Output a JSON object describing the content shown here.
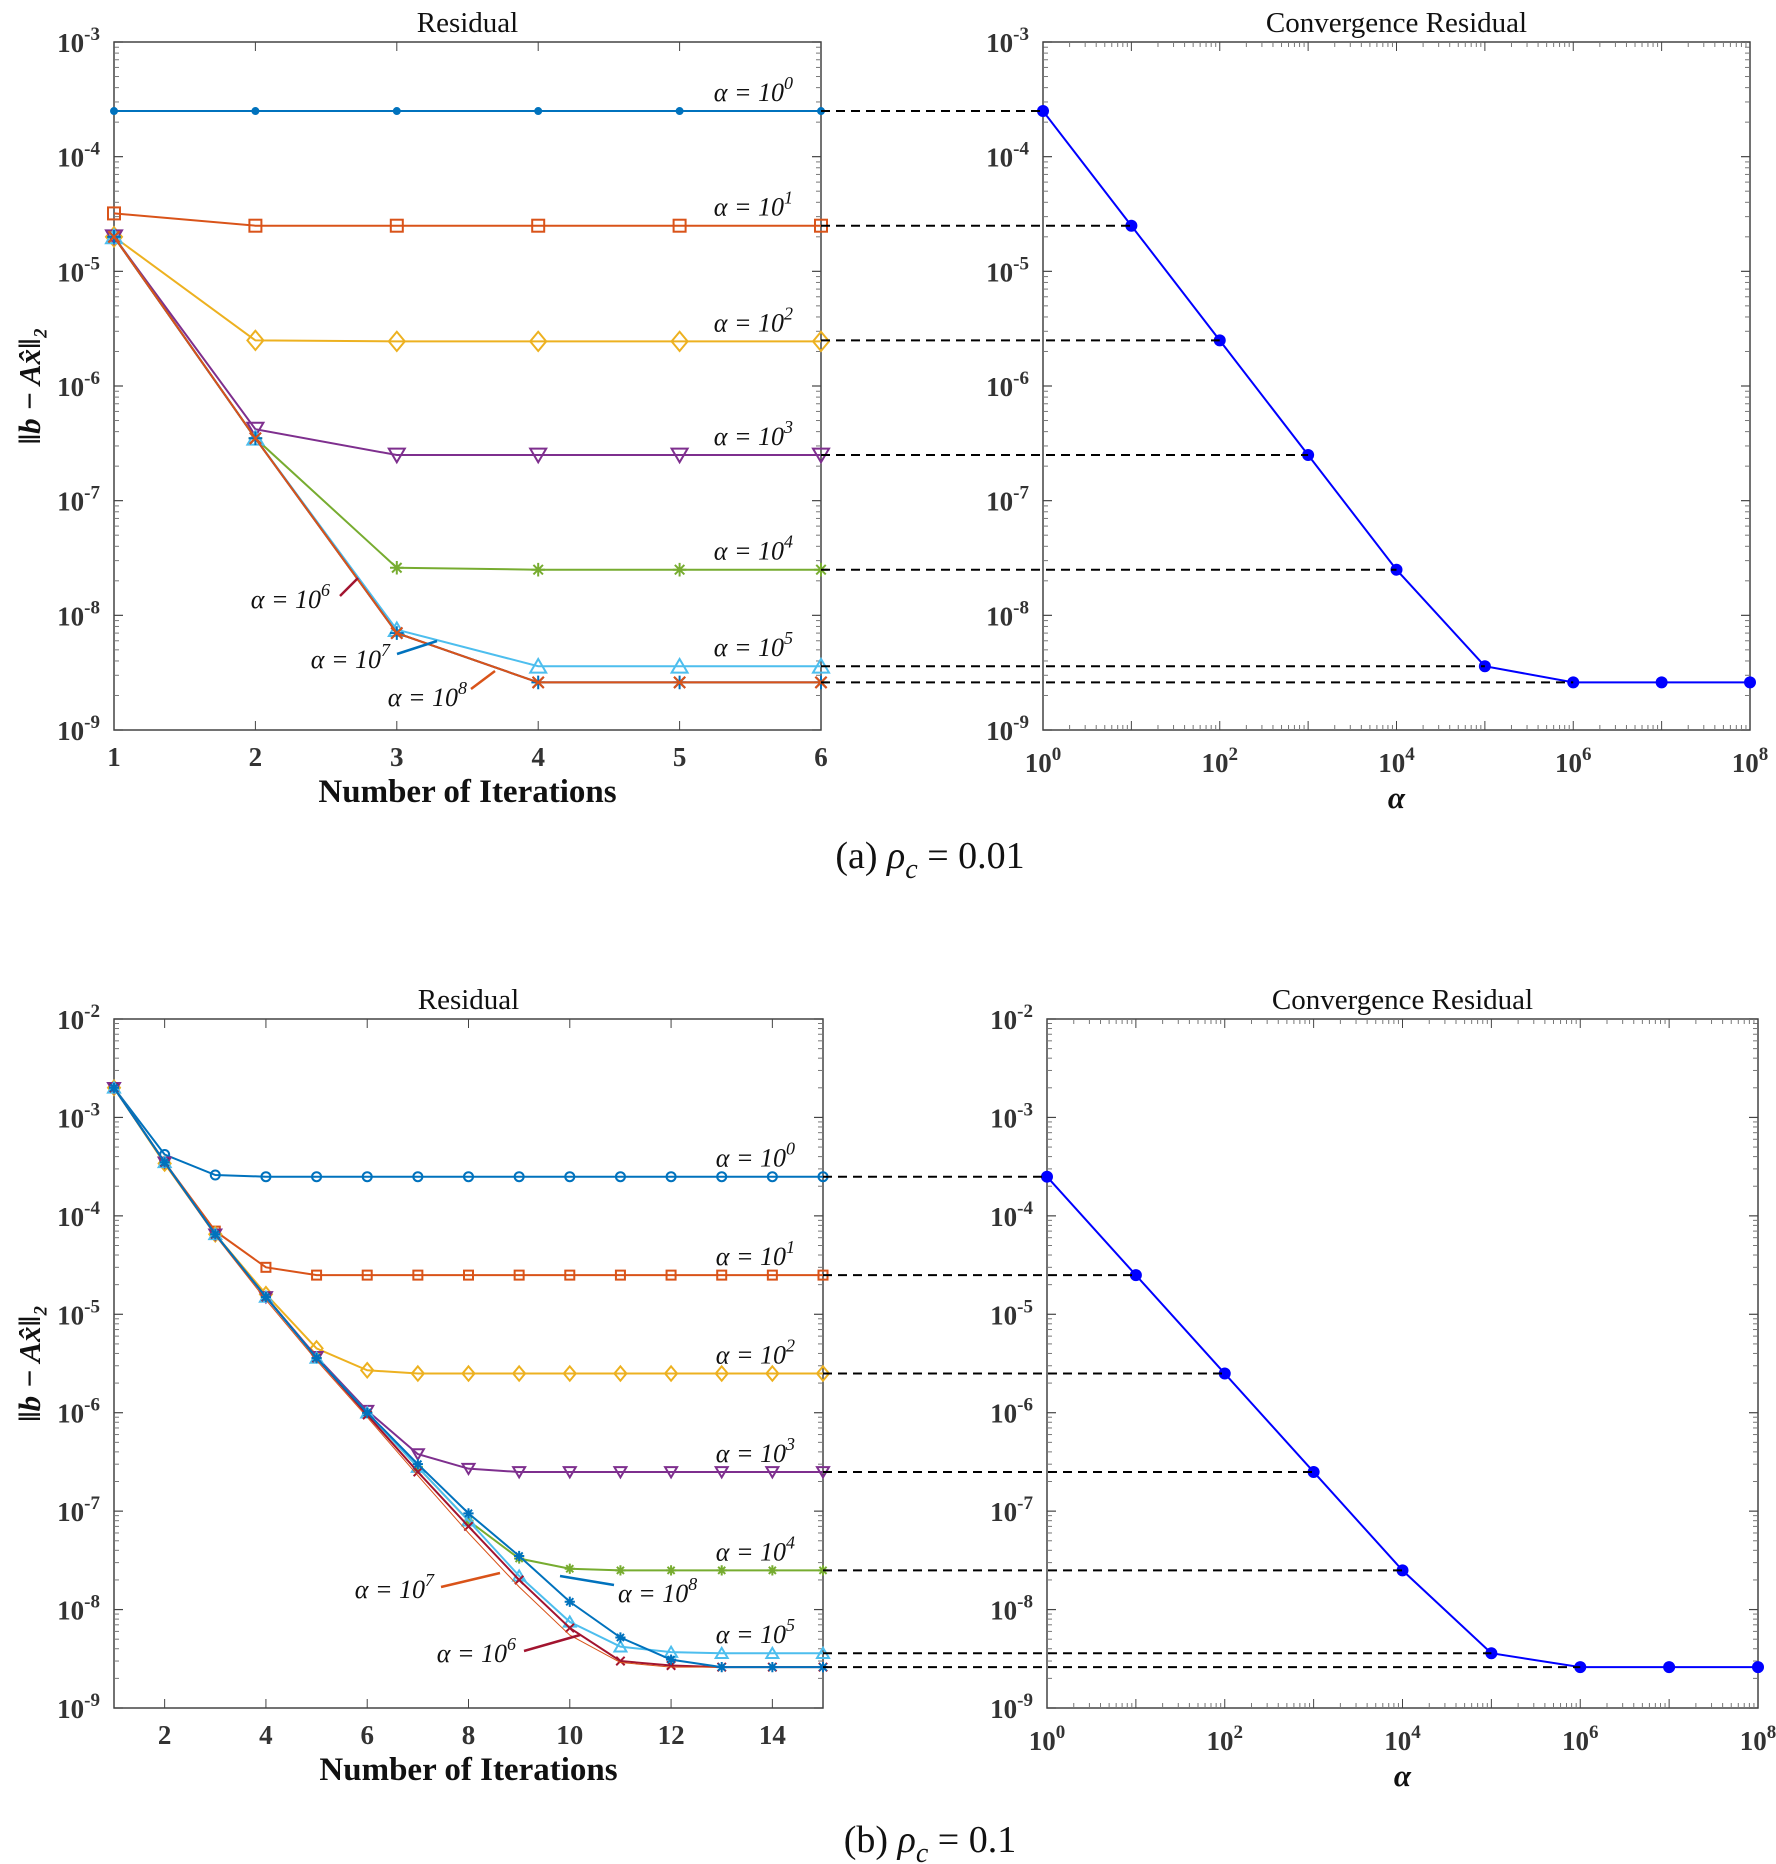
{
  "colors": {
    "c1": "#0072BD",
    "c2": "#D95319",
    "c3": "#EDB120",
    "c4": "#7E2F8E",
    "c5": "#77AC30",
    "c6": "#4DBEEE",
    "c7": "#A2142F",
    "conv": "#0000FF",
    "dash": "#000000"
  },
  "captions": [
    {
      "label": "(a)",
      "symbol": "ρ",
      "sub": "c",
      "value": "= 0.01"
    },
    {
      "label": "(b)",
      "symbol": "ρ",
      "sub": "c",
      "value": "= 0.1"
    }
  ],
  "chart_data": [
    {
      "type": "line",
      "title": "Residual",
      "xlabel": "Number of Iterations",
      "ylabel": "‖b − Ax̂‖₂",
      "yscale": "log",
      "ylim": [
        1e-09,
        0.001
      ],
      "xlim": [
        1,
        6
      ],
      "xticks": [
        1,
        2,
        3,
        4,
        5,
        6
      ],
      "grid": false,
      "x": [
        1,
        2,
        3,
        4,
        5,
        6
      ],
      "series": [
        {
          "name": "α = 10^0",
          "exp": "0",
          "color": "c1",
          "marker": "dot",
          "values": [
            0.00025,
            0.00025,
            0.00025,
            0.00025,
            0.00025,
            0.00025
          ]
        },
        {
          "name": "α = 10^1",
          "exp": "1",
          "color": "c2",
          "marker": "square",
          "values": [
            3.2e-05,
            2.5e-05,
            2.5e-05,
            2.5e-05,
            2.5e-05,
            2.5e-05
          ]
        },
        {
          "name": "α = 10^2",
          "exp": "2",
          "color": "c3",
          "marker": "diamond",
          "values": [
            2e-05,
            2.5e-06,
            2.45e-06,
            2.45e-06,
            2.45e-06,
            2.45e-06
          ]
        },
        {
          "name": "α = 10^3",
          "exp": "3",
          "color": "c4",
          "marker": "tri-down",
          "values": [
            2e-05,
            4.2e-07,
            2.5e-07,
            2.5e-07,
            2.5e-07,
            2.5e-07
          ]
        },
        {
          "name": "α = 10^4",
          "exp": "4",
          "color": "c5",
          "marker": "asterisk",
          "values": [
            2e-05,
            3.5e-07,
            2.6e-08,
            2.5e-08,
            2.5e-08,
            2.5e-08
          ]
        },
        {
          "name": "α = 10^5",
          "exp": "5",
          "color": "c6",
          "marker": "tri-up",
          "values": [
            2e-05,
            3.5e-07,
            7.5e-09,
            3.6e-09,
            3.6e-09,
            3.6e-09
          ]
        },
        {
          "name": "α = 10^6",
          "exp": "6",
          "color": "c7",
          "marker": "x",
          "values": [
            2e-05,
            3.5e-07,
            7e-09,
            2.6e-09,
            2.6e-09,
            2.6e-09
          ]
        },
        {
          "name": "α = 10^7",
          "exp": "7",
          "color": "c1",
          "marker": "asterisk",
          "values": [
            2e-05,
            3.5e-07,
            7e-09,
            2.6e-09,
            2.6e-09,
            2.6e-09
          ]
        },
        {
          "name": "α = 10^8",
          "exp": "8",
          "color": "c2",
          "marker": "x",
          "values": [
            2e-05,
            3.5e-07,
            7e-09,
            2.6e-09,
            2.6e-09,
            2.6e-09
          ]
        }
      ]
    },
    {
      "type": "line",
      "title": "Convergence Residual",
      "xlabel": "α",
      "xscale": "log",
      "yscale": "log",
      "ylim": [
        1e-09,
        0.001
      ],
      "xlim": [
        1,
        100000000.0
      ],
      "xtick_exps": [
        "0",
        "2",
        "4",
        "6",
        "8"
      ],
      "grid": false,
      "x": [
        1,
        10,
        100,
        1000,
        10000.0,
        100000.0,
        1000000.0,
        10000000.0,
        100000000.0
      ],
      "series": [
        {
          "color": "conv",
          "marker": "dot",
          "values": [
            0.00025,
            2.5e-05,
            2.5e-06,
            2.5e-07,
            2.5e-08,
            3.6e-09,
            2.6e-09,
            2.6e-09,
            2.6e-09
          ]
        }
      ]
    },
    {
      "type": "line",
      "title": "Residual",
      "xlabel": "Number of Iterations",
      "ylabel": "‖b − Ax̂‖₂",
      "yscale": "log",
      "ylim": [
        1e-09,
        0.01
      ],
      "xlim": [
        1,
        15
      ],
      "xticks": [
        2,
        4,
        6,
        8,
        10,
        12,
        14
      ],
      "grid": false,
      "x": [
        1,
        2,
        3,
        4,
        5,
        6,
        7,
        8,
        9,
        10,
        11,
        12,
        13,
        14,
        15
      ],
      "series": [
        {
          "name": "α = 10^0",
          "exp": "0",
          "color": "c1",
          "marker": "circle",
          "values": [
            0.002,
            0.00042,
            0.00026,
            0.00025,
            0.00025,
            0.00025,
            0.00025,
            0.00025,
            0.00025,
            0.00025,
            0.00025,
            0.00025,
            0.00025,
            0.00025,
            0.00025
          ]
        },
        {
          "name": "α = 10^1",
          "exp": "1",
          "color": "c2",
          "marker": "square",
          "values": [
            0.002,
            0.00035,
            7e-05,
            3e-05,
            2.5e-05,
            2.5e-05,
            2.5e-05,
            2.5e-05,
            2.5e-05,
            2.5e-05,
            2.5e-05,
            2.5e-05,
            2.5e-05,
            2.5e-05,
            2.5e-05
          ]
        },
        {
          "name": "α = 10^2",
          "exp": "2",
          "color": "c3",
          "marker": "diamond",
          "values": [
            0.002,
            0.00034,
            6.5e-05,
            1.6e-05,
            4.5e-06,
            2.7e-06,
            2.5e-06,
            2.5e-06,
            2.5e-06,
            2.5e-06,
            2.5e-06,
            2.5e-06,
            2.5e-06,
            2.5e-06,
            2.5e-06
          ]
        },
        {
          "name": "α = 10^3",
          "exp": "3",
          "color": "c4",
          "marker": "tri-down",
          "values": [
            0.002,
            0.00035,
            6.5e-05,
            1.5e-05,
            3.7e-06,
            1.05e-06,
            3.8e-07,
            2.7e-07,
            2.5e-07,
            2.5e-07,
            2.5e-07,
            2.5e-07,
            2.5e-07,
            2.5e-07,
            2.5e-07
          ]
        },
        {
          "name": "α = 10^4",
          "exp": "4",
          "color": "c5",
          "marker": "asterisk",
          "values": [
            0.002,
            0.00035,
            6.5e-05,
            1.5e-05,
            3.6e-06,
            1e-06,
            2.8e-07,
            8e-08,
            3.3e-08,
            2.6e-08,
            2.5e-08,
            2.5e-08,
            2.5e-08,
            2.5e-08,
            2.5e-08
          ]
        },
        {
          "name": "α = 10^5",
          "exp": "5",
          "color": "c6",
          "marker": "tri-up",
          "values": [
            0.002,
            0.00035,
            6.5e-05,
            1.5e-05,
            3.6e-06,
            1e-06,
            2.8e-07,
            8e-08,
            2.2e-08,
            7.5e-09,
            4.2e-09,
            3.7e-09,
            3.6e-09,
            3.6e-09,
            3.6e-09
          ]
        },
        {
          "name": "α = 10^6",
          "exp": "6",
          "color": "c7",
          "marker": "x",
          "values": [
            0.002,
            0.00035,
            6.5e-05,
            1.5e-05,
            3.6e-06,
            9.5e-07,
            2.5e-07,
            7e-08,
            2e-08,
            6.5e-09,
            3e-09,
            2.7e-09,
            2.6e-09,
            2.6e-09,
            2.6e-09
          ]
        },
        {
          "name": "α = 10^7",
          "exp": "7",
          "color": "c2",
          "marker": "none",
          "thin": true,
          "values": [
            0.002,
            0.00034,
            6.3e-05,
            1.4e-05,
            3.4e-06,
            9e-07,
            2.3e-07,
            6e-08,
            1.7e-08,
            5.5e-09,
            2.9e-09,
            2.6e-09,
            2.6e-09,
            2.6e-09,
            2.6e-09
          ]
        },
        {
          "name": "α = 10^8",
          "exp": "8",
          "color": "c1",
          "marker": "asterisk",
          "values": [
            0.002,
            0.00035,
            6.5e-05,
            1.5e-05,
            3.6e-06,
            1e-06,
            3e-07,
            9.5e-08,
            3.5e-08,
            1.2e-08,
            5.2e-09,
            3.1e-09,
            2.6e-09,
            2.6e-09,
            2.6e-09
          ]
        }
      ]
    },
    {
      "type": "line",
      "title": "Convergence Residual",
      "xlabel": "α",
      "xscale": "log",
      "yscale": "log",
      "ylim": [
        1e-09,
        0.01
      ],
      "xlim": [
        1,
        100000000.0
      ],
      "xtick_exps": [
        "0",
        "2",
        "4",
        "6",
        "8"
      ],
      "grid": false,
      "x": [
        1,
        10,
        100,
        1000,
        10000.0,
        100000.0,
        1000000.0,
        10000000.0,
        100000000.0
      ],
      "series": [
        {
          "color": "conv",
          "marker": "dot",
          "values": [
            0.00025,
            2.5e-05,
            2.5e-06,
            2.5e-07,
            2.5e-08,
            3.6e-09,
            2.6e-09,
            2.6e-09,
            2.6e-09
          ]
        }
      ]
    }
  ]
}
